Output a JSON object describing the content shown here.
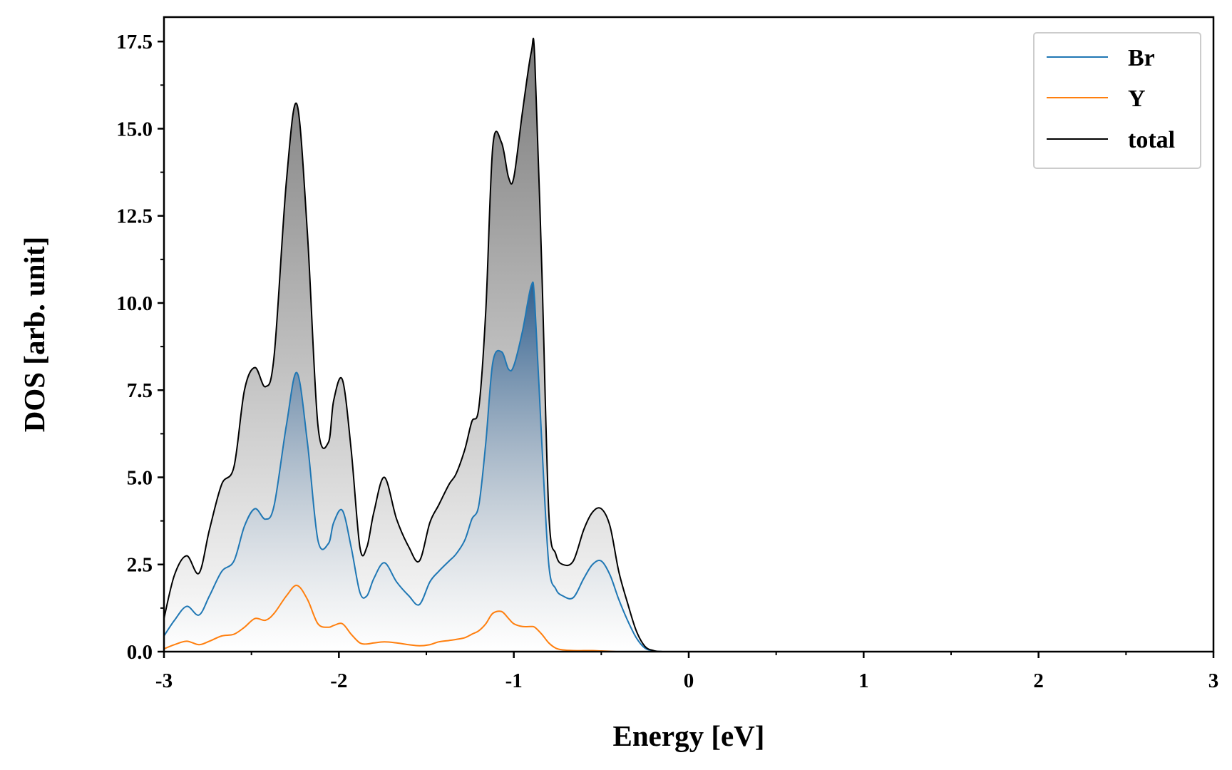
{
  "chart_data": {
    "type": "line",
    "xlabel": "Energy [eV]",
    "ylabel": "DOS [arb. unit]",
    "xlim": [
      -3,
      3
    ],
    "ylim": [
      0,
      18.2
    ],
    "xticks": [
      -3,
      -2,
      -1,
      0,
      1,
      2,
      3
    ],
    "xtick_labels": [
      "-3",
      "-2",
      "-1",
      "0",
      "1",
      "2",
      "3"
    ],
    "yticks": [
      0,
      2.5,
      5,
      7.5,
      10,
      12.5,
      15,
      17.5
    ],
    "ytick_labels": [
      "0.0",
      "2.5",
      "5.0",
      "7.5",
      "10.0",
      "12.5",
      "15.0",
      "17.5"
    ],
    "grid": false,
    "legend": "top-right",
    "x": [
      -3.0,
      -2.94,
      -2.87,
      -2.8,
      -2.74,
      -2.67,
      -2.6,
      -2.54,
      -2.48,
      -2.42,
      -2.37,
      -2.3,
      -2.24,
      -2.18,
      -2.12,
      -2.06,
      -2.03,
      -1.98,
      -1.93,
      -1.88,
      -1.84,
      -1.8,
      -1.74,
      -1.67,
      -1.6,
      -1.54,
      -1.48,
      -1.43,
      -1.37,
      -1.33,
      -1.28,
      -1.24,
      -1.2,
      -1.16,
      -1.12,
      -1.07,
      -1.03,
      -1.0,
      -0.95,
      -0.9,
      -0.88,
      -0.84,
      -0.8,
      -0.76,
      -0.72,
      -0.66,
      -0.6,
      -0.55,
      -0.5,
      -0.45,
      -0.4,
      -0.35,
      -0.3,
      -0.25,
      -0.2,
      -0.15,
      -0.1,
      0.0,
      3.0
    ],
    "series": [
      {
        "name": "Br",
        "color": "#1f77b4",
        "values": [
          0.45,
          0.9,
          1.3,
          1.05,
          1.6,
          2.3,
          2.6,
          3.6,
          4.1,
          3.8,
          4.2,
          6.5,
          8.0,
          6.0,
          3.2,
          3.1,
          3.7,
          4.05,
          3.0,
          1.7,
          1.6,
          2.1,
          2.55,
          2.0,
          1.6,
          1.35,
          2.0,
          2.3,
          2.6,
          2.8,
          3.2,
          3.8,
          4.2,
          6.0,
          8.3,
          8.6,
          8.1,
          8.2,
          9.2,
          10.5,
          10.0,
          6.0,
          2.5,
          1.8,
          1.6,
          1.55,
          2.1,
          2.5,
          2.6,
          2.2,
          1.5,
          0.9,
          0.4,
          0.1,
          0.02,
          0.0,
          0.0,
          0.0,
          0.0
        ]
      },
      {
        "name": "Y",
        "color": "#ff7f0e",
        "values": [
          0.08,
          0.2,
          0.3,
          0.2,
          0.3,
          0.45,
          0.5,
          0.7,
          0.95,
          0.9,
          1.1,
          1.6,
          1.9,
          1.5,
          0.8,
          0.7,
          0.75,
          0.8,
          0.5,
          0.25,
          0.22,
          0.25,
          0.28,
          0.25,
          0.2,
          0.17,
          0.2,
          0.28,
          0.32,
          0.35,
          0.4,
          0.5,
          0.6,
          0.8,
          1.1,
          1.15,
          0.95,
          0.8,
          0.72,
          0.72,
          0.7,
          0.5,
          0.25,
          0.1,
          0.05,
          0.03,
          0.03,
          0.03,
          0.02,
          0.01,
          0.0,
          0.0,
          0.0,
          0.0,
          0.0,
          0.0,
          0.0,
          0.0,
          0.0
        ]
      },
      {
        "name": "total",
        "color": "#000000",
        "values": [
          0.95,
          2.2,
          2.75,
          2.25,
          3.5,
          4.8,
          5.3,
          7.5,
          8.15,
          7.6,
          8.5,
          13.5,
          15.7,
          12.0,
          6.5,
          6.0,
          7.2,
          7.8,
          5.8,
          3.0,
          3.0,
          4.0,
          5.0,
          3.8,
          3.0,
          2.6,
          3.7,
          4.2,
          4.8,
          5.1,
          5.8,
          6.6,
          7.0,
          9.8,
          14.5,
          14.6,
          13.6,
          13.6,
          15.5,
          17.2,
          17.0,
          11.0,
          4.0,
          2.8,
          2.5,
          2.6,
          3.5,
          4.0,
          4.1,
          3.6,
          2.3,
          1.4,
          0.6,
          0.15,
          0.03,
          0.0,
          0.0,
          0.0,
          0.0
        ]
      }
    ]
  }
}
